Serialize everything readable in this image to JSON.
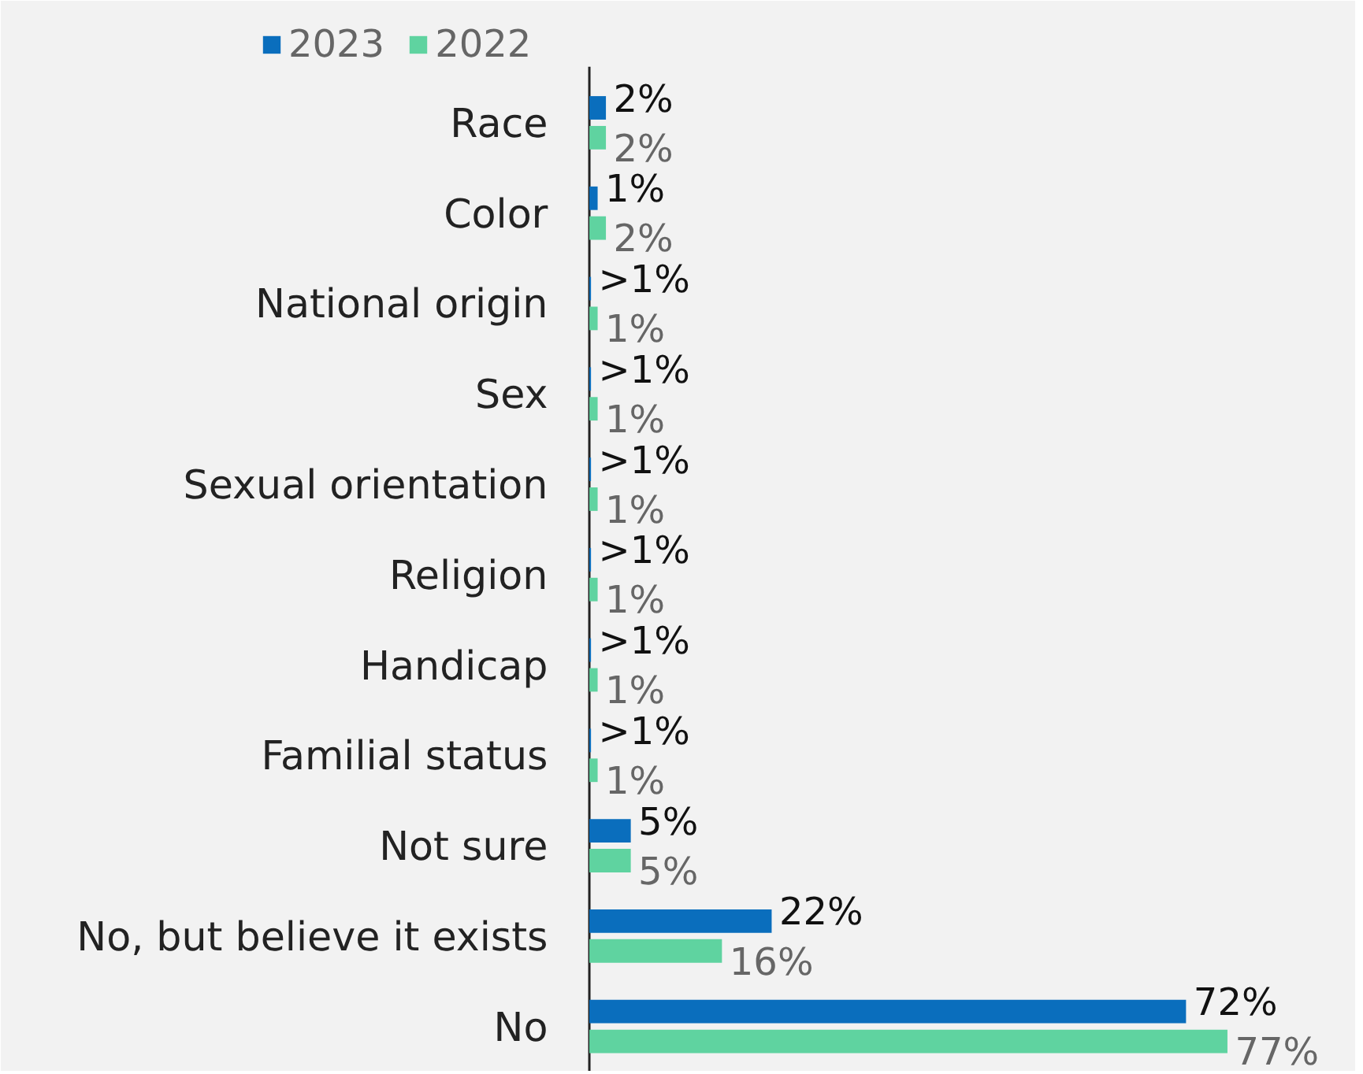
{
  "chart_data": {
    "type": "bar",
    "orientation": "horizontal",
    "categories": [
      "Race",
      "Color",
      "National origin",
      "Sex",
      "Sexual orientation",
      "Religion",
      "Handicap",
      "Familial status",
      "Not sure",
      "No, but believe it exists",
      "No"
    ],
    "series": [
      {
        "name": "2023",
        "color": "#0a6ebd",
        "values": [
          2,
          1,
          0.2,
          0.2,
          0.2,
          0.2,
          0.2,
          0.2,
          5,
          22,
          72
        ],
        "value_labels": [
          "2%",
          "1%",
          ">1%",
          ">1%",
          ">1%",
          ">1%",
          ">1%",
          ">1%",
          "5%",
          "22%",
          "72%"
        ]
      },
      {
        "name": "2022",
        "color": "#5fd3a0",
        "values": [
          2,
          2,
          1,
          1,
          1,
          1,
          1,
          1,
          5,
          16,
          77
        ],
        "value_labels": [
          "2%",
          "2%",
          "1%",
          "1%",
          "1%",
          "1%",
          "1%",
          "1%",
          "5%",
          "16%",
          "77%"
        ]
      }
    ],
    "legend": "top left",
    "grid": false
  }
}
